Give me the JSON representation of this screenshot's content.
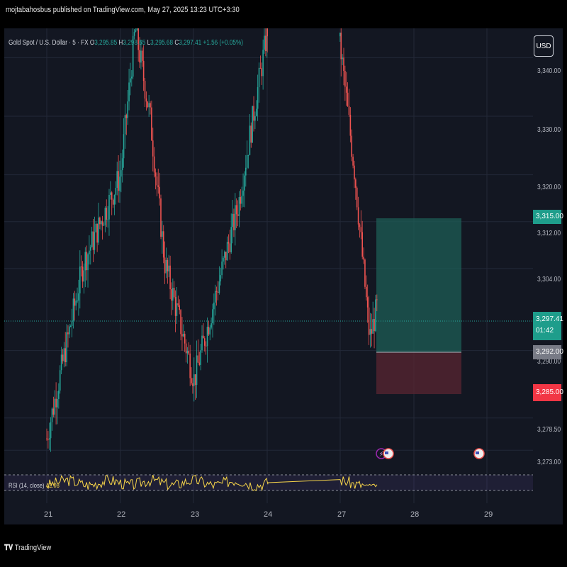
{
  "header": {
    "published_text": "mojtabahosbus published on TradingView.com, May 27, 2025 13:23 UTC+3:30"
  },
  "legend": {
    "symbol": "Gold Spot / U.S. Dollar · 5 · FX",
    "open_label": "O",
    "open": "3,295.85",
    "high_label": "H",
    "high": "3,298.65",
    "low_label": "L",
    "low": "3,295.68",
    "close_label": "C",
    "close": "3,297.41",
    "change": "+1.56 (+0.05%)"
  },
  "currency_button": "USD",
  "price_axis": {
    "ticks": [
      "3,340.00",
      "3,330.00",
      "3,320.00",
      "3,312.00",
      "3,304.00",
      "3,278.50",
      "3,273.00"
    ],
    "partially_hidden_tick": "3,290.00"
  },
  "time_axis": {
    "ticks": [
      "21",
      "22",
      "23",
      "24",
      "27",
      "28",
      "29"
    ]
  },
  "price_tags": {
    "take_profit": "3,315.00",
    "current": "3,297.41",
    "countdown": "01:42",
    "entry": "3,292.00",
    "stop_loss": "3,285.00"
  },
  "rsi": {
    "label": "RSI (14, close)",
    "value": "42.08"
  },
  "footer": {
    "brand": "TradingView"
  },
  "colors": {
    "bg": "#131722",
    "grid": "#232838",
    "up": "#26a69a",
    "down": "#ef5350",
    "profit_zone": "#1e5d56",
    "loss_zone": "#5a2532",
    "rsi_line": "#f7d54a",
    "rsi_band": "#7e57c2"
  },
  "chart_data": {
    "type": "line",
    "subtype": "candlestick",
    "symbol": "XAUUSD",
    "timeframe": "5",
    "x": [
      "21",
      "21.5",
      "22",
      "22.2",
      "22.4",
      "22.6",
      "23",
      "23.3",
      "23.6",
      "23.8",
      "24",
      "24.3",
      "24.6",
      "25",
      "25.5",
      "26",
      "27",
      "27.2",
      "27.4",
      "27.5"
    ],
    "y": [
      3275,
      3305,
      3320,
      3345,
      3330,
      3305,
      3285,
      3300,
      3315,
      3330,
      3345,
      3340,
      3327,
      3337,
      3342,
      3345,
      3342,
      3320,
      3292,
      3297.4
    ],
    "ylim": [
      3270,
      3345
    ],
    "grid": true,
    "position_tool": {
      "entry": 3292.0,
      "take_profit": 3315.0,
      "stop_loss": 3285.0
    },
    "rsi": {
      "period": 14,
      "last": 42.08,
      "upper": 70,
      "lower": 30
    }
  }
}
